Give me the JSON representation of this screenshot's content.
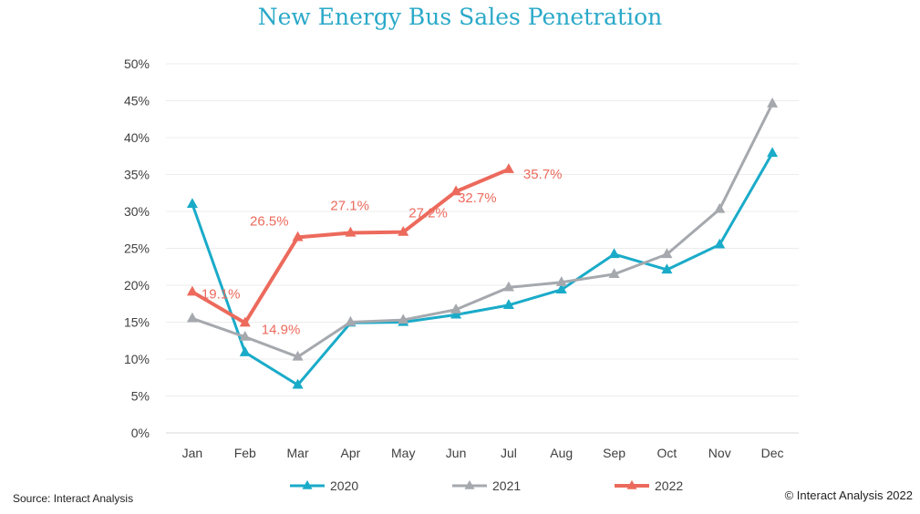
{
  "colors": {
    "2020": "#1aabc9",
    "2021": "#a5a9ae",
    "2022": "#ec6a5c",
    "title": "#2aa9c9"
  },
  "source": "Source: Interact Analysis",
  "copyright": "© Interact Analysis 2022",
  "chart_data": {
    "type": "line",
    "title": "New Energy Bus Sales Penetration",
    "xlabel": "",
    "ylabel": "",
    "categories": [
      "Jan",
      "Feb",
      "Mar",
      "Apr",
      "May",
      "Jun",
      "Jul",
      "Aug",
      "Sep",
      "Oct",
      "Nov",
      "Dec"
    ],
    "ylim": [
      0,
      50
    ],
    "yticks": [
      "0%",
      "5%",
      "10%",
      "15%",
      "20%",
      "25%",
      "30%",
      "35%",
      "40%",
      "45%",
      "50%"
    ],
    "grid": true,
    "legend_placement": "bottom",
    "marker": "triangle",
    "series": [
      {
        "name": "2020",
        "color": "#1aabc9",
        "values": [
          31.0,
          10.9,
          6.5,
          14.9,
          15.0,
          16.0,
          17.3,
          19.4,
          24.2,
          22.1,
          25.5,
          37.9
        ]
      },
      {
        "name": "2021",
        "color": "#a5a9ae",
        "values": [
          15.5,
          13.0,
          10.3,
          15.0,
          15.3,
          16.7,
          19.7,
          20.4,
          21.5,
          24.2,
          30.3,
          44.6
        ]
      },
      {
        "name": "2022",
        "color": "#ec6a5c",
        "values": [
          19.1,
          14.9,
          26.5,
          27.1,
          27.2,
          32.7,
          35.7,
          null,
          null,
          null,
          null,
          null
        ],
        "data_labels": [
          "19.1%",
          "14.9%",
          "26.5%",
          "27.1%",
          "27.2%",
          "32.7%",
          "35.7%"
        ]
      }
    ]
  }
}
